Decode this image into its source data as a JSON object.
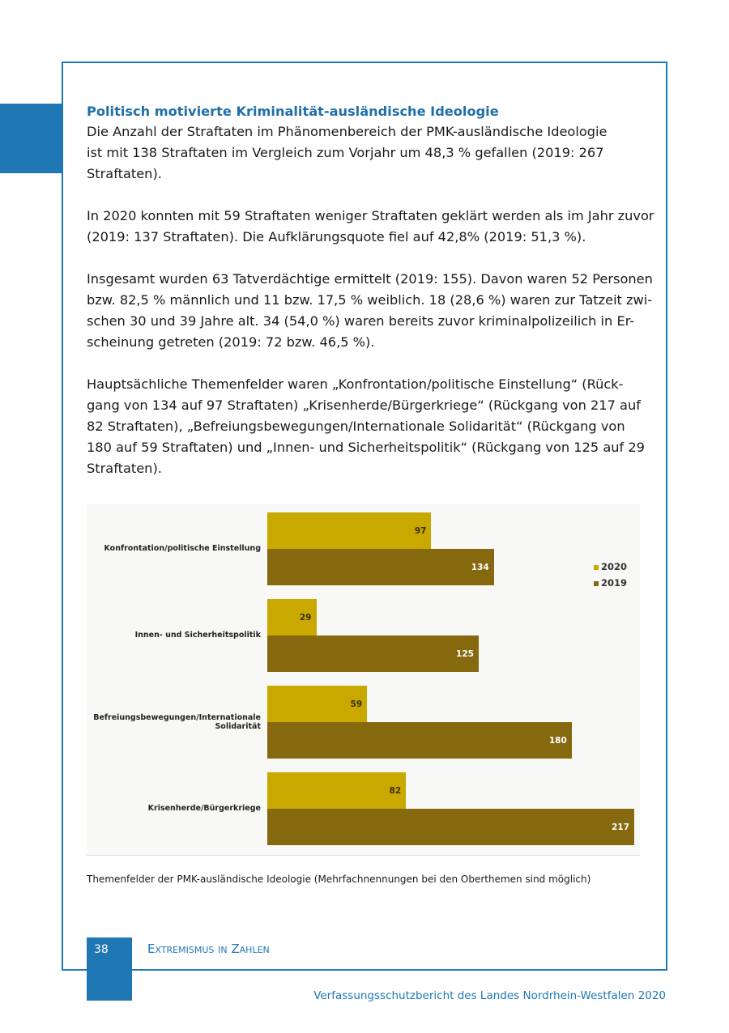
{
  "heading": "Politisch motivierte Kriminalität-ausländische Ideologie",
  "paragraphs": [
    [
      "Die Anzahl der Straftaten im Phänomenbereich der PMK-ausländische Ideologie",
      "ist mit 138 Straftaten im Vergleich zum Vorjahr um 48,3 % gefallen (2019: 267",
      "Straftaten)."
    ],
    [
      "In 2020 konnten mit 59 Straftaten weniger Straftaten geklärt werden als im Jahr zuvor",
      "(2019: 137 Straftaten). Die Aufklärungsquote fiel auf 42,8% (2019: 51,3 %)."
    ],
    [
      "Insgesamt wurden 63 Tatverdächtige ermittelt (2019: 155). Davon waren 52 Personen",
      "bzw. 82,5 % männlich und 11 bzw. 17,5 % weiblich. 18 (28,6 %) waren zur Tatzeit zwi-",
      "schen 30 und 39 Jahre alt. 34 (54,0 %) waren bereits zuvor kriminalpolizeilich in Er-",
      "scheinung getreten (2019: 72 bzw. 46,5 %)."
    ],
    [
      "Hauptsächliche Themenfelder waren „Konfrontation/politische Einstellung“ (Rück-",
      "gang von 134 auf 97 Straftaten) „Krisenherde/Bürgerkriege“ (Rückgang von 217 auf",
      "82 Straftaten), „Befreiungsbewegungen/Internationale Solidarität“ (Rückgang von",
      "180 auf 59 Straftaten) und „Innen- und Sicherheitspolitik“ (Rückgang von 125 auf 29",
      "Straftaten)."
    ]
  ],
  "chart_data": {
    "type": "hbar",
    "categories": [
      "Konfrontation/politische Einstellung",
      "Innen- und Sicherheitspolitik",
      "Befreiungsbewegungen/Internationale Solidarität",
      "Krisenherde/Bürgerkriege"
    ],
    "series": [
      {
        "name": "2020",
        "color": "#c9a800",
        "values": [
          97,
          29,
          59,
          82
        ]
      },
      {
        "name": "2019",
        "color": "#86690f",
        "values": [
          134,
          125,
          180,
          217
        ]
      }
    ],
    "xlim": [
      0,
      217
    ],
    "legend": "right"
  },
  "caption": "Themenfelder der PMK-ausländische Ideologie (Mehrfachnennungen bei den Oberthemen sind möglich)",
  "footer": {
    "page_number": "38",
    "section": "Extremismus in Zahlen",
    "publication": "Verfassungsschutzbericht des Landes Nordrhein-Westfalen 2020"
  }
}
